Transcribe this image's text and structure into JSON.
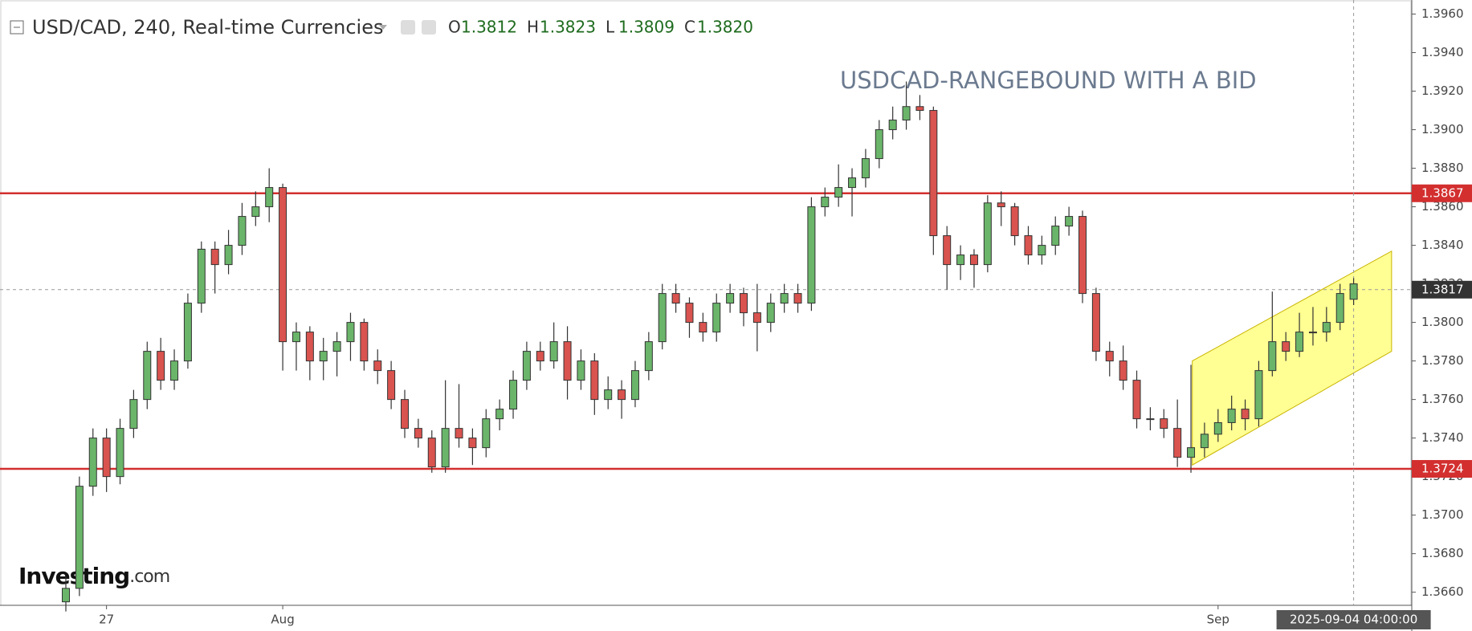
{
  "chart_data": {
    "type": "candlestick",
    "title": "USD/CAD, 240, Real-time Currencies",
    "header": [
      {
        "key": "O",
        "value": "1.3812"
      },
      {
        "key": "H",
        "value": "1.3823"
      },
      {
        "key": "L",
        "value": "1.3809"
      },
      {
        "key": "C",
        "value": "1.3820"
      }
    ],
    "annotation": "USDCAD-RANGEBOUND WITH A BID",
    "logo": [
      "Investing",
      ".com"
    ],
    "crosshair_time": "2025-09-04 04:00:00",
    "up_color": "#6ab56a",
    "down_color": "#d9534f",
    "categories": [
      null,
      null,
      null,
      "27",
      null,
      null,
      null,
      null,
      null,
      null,
      null,
      null,
      null,
      null,
      null,
      null,
      "Aug",
      null,
      null,
      null,
      null,
      null,
      null,
      null,
      null,
      null,
      null,
      null,
      null,
      null,
      null,
      null,
      null,
      null,
      null,
      null,
      null,
      null,
      null,
      null,
      null,
      null,
      null,
      null,
      null,
      null,
      null,
      null,
      null,
      null,
      null,
      null,
      null,
      null,
      null,
      null,
      null,
      null,
      null,
      null,
      null,
      null,
      null,
      null,
      null,
      null,
      null,
      null,
      null,
      null,
      null,
      null,
      null,
      null,
      null,
      null,
      null,
      null,
      null,
      null,
      null,
      null,
      null,
      null,
      null,
      "Sep",
      null,
      null,
      null,
      null,
      null,
      null,
      null,
      null,
      null,
      null
    ],
    "open": [
      1.3655,
      1.3662,
      1.3715,
      1.374,
      1.372,
      1.3745,
      1.376,
      1.3785,
      1.377,
      1.378,
      1.381,
      1.3838,
      1.383,
      1.384,
      1.3855,
      1.386,
      1.387,
      1.379,
      1.3795,
      1.378,
      1.3785,
      1.379,
      1.38,
      1.378,
      1.3775,
      1.376,
      1.3745,
      1.374,
      1.3725,
      1.3745,
      1.374,
      1.3735,
      1.375,
      1.3755,
      1.377,
      1.3785,
      1.378,
      1.379,
      1.377,
      1.378,
      1.376,
      1.3765,
      1.376,
      1.3775,
      1.379,
      1.3815,
      1.381,
      1.38,
      1.3795,
      1.381,
      1.3815,
      1.3805,
      1.38,
      1.381,
      1.3815,
      1.381,
      1.386,
      1.3865,
      1.387,
      1.3875,
      1.3885,
      1.39,
      1.3905,
      1.3912,
      1.391,
      1.3845,
      1.383,
      1.3835,
      1.383,
      1.3862,
      1.386,
      1.3845,
      1.3835,
      1.384,
      1.385,
      1.3855,
      1.3815,
      1.3785,
      1.378,
      1.377,
      1.375,
      1.375,
      1.3745,
      1.373,
      1.3735,
      1.3742,
      1.3748,
      1.3755,
      1.375,
      1.3775,
      1.379,
      1.3785,
      1.3795,
      1.3795,
      1.38,
      1.3812
    ],
    "high": [
      1.3668,
      1.372,
      1.3745,
      1.3745,
      1.375,
      1.3765,
      1.379,
      1.3792,
      1.3786,
      1.3815,
      1.3842,
      1.3842,
      1.3848,
      1.3862,
      1.3868,
      1.388,
      1.3872,
      1.38,
      1.3798,
      1.3792,
      1.3795,
      1.3805,
      1.3802,
      1.3786,
      1.378,
      1.3765,
      1.375,
      1.3744,
      1.377,
      1.3768,
      1.3745,
      1.3755,
      1.376,
      1.3775,
      1.379,
      1.379,
      1.38,
      1.3798,
      1.3786,
      1.3784,
      1.3772,
      1.377,
      1.378,
      1.3795,
      1.382,
      1.382,
      1.3813,
      1.3805,
      1.3815,
      1.382,
      1.3818,
      1.382,
      1.3815,
      1.382,
      1.382,
      1.3865,
      1.387,
      1.3882,
      1.388,
      1.389,
      1.3905,
      1.3912,
      1.3925,
      1.3918,
      1.3912,
      1.385,
      1.384,
      1.3838,
      1.3866,
      1.3868,
      1.3862,
      1.385,
      1.3845,
      1.3855,
      1.386,
      1.3858,
      1.3818,
      1.379,
      1.3788,
      1.3775,
      1.3756,
      1.3755,
      1.376,
      1.3778,
      1.3748,
      1.3755,
      1.3762,
      1.376,
      1.378,
      1.3816,
      1.3795,
      1.3805,
      1.3808,
      1.3808,
      1.382,
      1.3823
    ],
    "low": [
      1.365,
      1.3658,
      1.371,
      1.3712,
      1.3716,
      1.374,
      1.3755,
      1.3765,
      1.3765,
      1.3776,
      1.3805,
      1.3815,
      1.3825,
      1.3835,
      1.385,
      1.3852,
      1.3775,
      1.3775,
      1.377,
      1.377,
      1.3772,
      1.378,
      1.3775,
      1.3768,
      1.3755,
      1.374,
      1.3735,
      1.3722,
      1.3722,
      1.3735,
      1.3726,
      1.373,
      1.3744,
      1.375,
      1.3765,
      1.3775,
      1.3776,
      1.376,
      1.3765,
      1.3752,
      1.3755,
      1.375,
      1.3756,
      1.377,
      1.3786,
      1.3805,
      1.3792,
      1.379,
      1.379,
      1.3805,
      1.3798,
      1.3785,
      1.3795,
      1.3805,
      1.3805,
      1.3806,
      1.3855,
      1.386,
      1.3855,
      1.387,
      1.388,
      1.3895,
      1.39,
      1.3905,
      1.3835,
      1.3817,
      1.3822,
      1.3818,
      1.3826,
      1.385,
      1.384,
      1.383,
      1.383,
      1.3835,
      1.3845,
      1.381,
      1.378,
      1.3772,
      1.3765,
      1.3745,
      1.3744,
      1.374,
      1.3725,
      1.3722,
      1.373,
      1.3738,
      1.3744,
      1.3744,
      1.3746,
      1.3772,
      1.378,
      1.3782,
      1.3788,
      1.379,
      1.3796,
      1.3809
    ],
    "close": [
      1.3662,
      1.3715,
      1.374,
      1.372,
      1.3745,
      1.376,
      1.3785,
      1.377,
      1.378,
      1.381,
      1.3838,
      1.383,
      1.384,
      1.3855,
      1.386,
      1.387,
      1.379,
      1.3795,
      1.378,
      1.3785,
      1.379,
      1.38,
      1.378,
      1.3775,
      1.376,
      1.3745,
      1.374,
      1.3725,
      1.3745,
      1.374,
      1.3735,
      1.375,
      1.3755,
      1.377,
      1.3785,
      1.378,
      1.379,
      1.377,
      1.378,
      1.376,
      1.3765,
      1.376,
      1.3775,
      1.379,
      1.3815,
      1.381,
      1.38,
      1.3795,
      1.381,
      1.3815,
      1.3805,
      1.38,
      1.381,
      1.3815,
      1.381,
      1.386,
      1.3865,
      1.387,
      1.3875,
      1.3885,
      1.39,
      1.3905,
      1.3912,
      1.391,
      1.3845,
      1.383,
      1.3835,
      1.383,
      1.3862,
      1.386,
      1.3845,
      1.3835,
      1.384,
      1.385,
      1.3855,
      1.3815,
      1.3785,
      1.378,
      1.377,
      1.375,
      1.375,
      1.3745,
      1.373,
      1.3735,
      1.3742,
      1.3748,
      1.3755,
      1.375,
      1.3775,
      1.379,
      1.3785,
      1.3795,
      1.3795,
      1.38,
      1.3815,
      1.382
    ],
    "ylim": [
      1.36532,
      1.39673
    ],
    "yticks": [
      {
        "value": 1.366,
        "label": "1.3660"
      },
      {
        "value": 1.368,
        "label": "1.3680"
      },
      {
        "value": 1.37,
        "label": "1.3700"
      },
      {
        "value": 1.372,
        "label": "1.3720"
      },
      {
        "value": 1.374,
        "label": "1.3740"
      },
      {
        "value": 1.376,
        "label": "1.3760"
      },
      {
        "value": 1.378,
        "label": "1.3780"
      },
      {
        "value": 1.38,
        "label": "1.3800"
      },
      {
        "value": 1.382,
        "label": "1.3820"
      },
      {
        "value": 1.384,
        "label": "1.3840"
      },
      {
        "value": 1.386,
        "label": "1.3860"
      },
      {
        "value": 1.388,
        "label": "1.3880"
      },
      {
        "value": 1.39,
        "label": "1.3900"
      },
      {
        "value": 1.392,
        "label": "1.3920"
      },
      {
        "value": 1.394,
        "label": "1.3940"
      },
      {
        "value": 1.396,
        "label": "1.3960"
      }
    ],
    "levels": [
      {
        "value": 1.3867,
        "color": "#d32f2f"
      },
      {
        "value": 1.3724,
        "color": "#d32f2f"
      }
    ],
    "last_price": 1.3817,
    "channel": {
      "start": 83.1,
      "end": 97.8,
      "upper": [
        1.378,
        1.3837
      ],
      "lower": [
        1.3726,
        1.3785
      ],
      "color": "#ffff80"
    }
  }
}
